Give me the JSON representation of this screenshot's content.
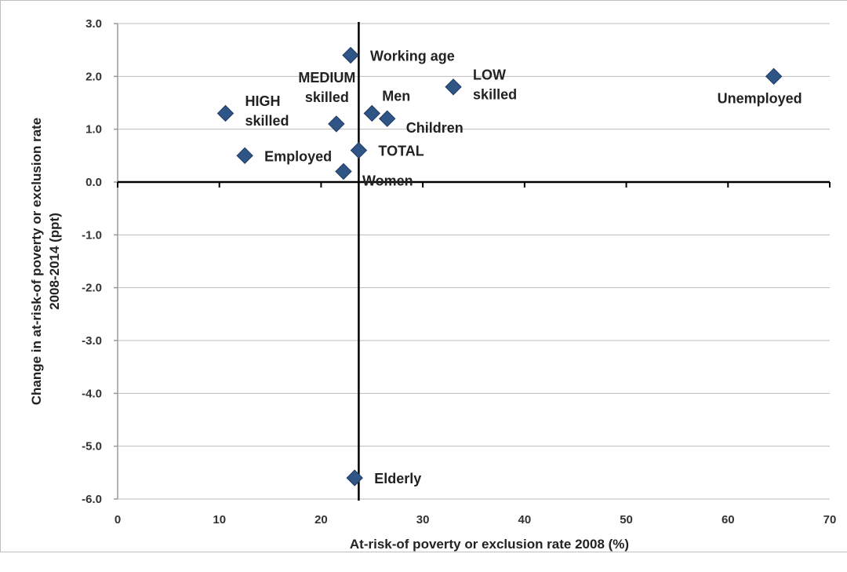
{
  "chart_data": {
    "type": "scatter",
    "xlabel": "At-risk-of poverty or exclusion rate 2008 (%)",
    "ylabel_lines": [
      "Change in at-risk-of poverty or exclusion rate",
      "2008-2014 (ppt)"
    ],
    "xlim": [
      0,
      70
    ],
    "ylim": [
      -6,
      3
    ],
    "x_ticks": [
      0,
      10,
      20,
      30,
      40,
      50,
      60,
      70
    ],
    "y_ticks": [
      3,
      2,
      1,
      0,
      -1,
      -2,
      -3,
      -4,
      -5,
      -6
    ],
    "y_tick_labels": [
      "3.0",
      "2.0",
      "1.0",
      "0.0",
      "-1.0",
      "-2.0",
      "-3.0",
      "-4.0",
      "-5.0",
      "-6.0"
    ],
    "grid": "horizontal",
    "vertical_reference_x": 23.7,
    "marker_color": "#2F5486",
    "marker_edge_color": "#1F3A60",
    "points": [
      {
        "label_lines": [
          "Working age"
        ],
        "x": 22.9,
        "y": 2.4,
        "label_pos": "right"
      },
      {
        "label_lines": [
          "MEDIUM",
          "skilled"
        ],
        "x": 21.5,
        "y": 1.1,
        "label_pos": "above"
      },
      {
        "label_lines": [
          "Men"
        ],
        "x": 25.0,
        "y": 1.3,
        "label_pos": "upper-right"
      },
      {
        "label_lines": [
          "Children"
        ],
        "x": 26.5,
        "y": 1.2,
        "label_pos": "lower-right"
      },
      {
        "label_lines": [
          "LOW",
          "skilled"
        ],
        "x": 33.0,
        "y": 1.8,
        "label_pos": "right"
      },
      {
        "label_lines": [
          "Unemployed"
        ],
        "x": 64.5,
        "y": 2.0,
        "label_pos": "below"
      },
      {
        "label_lines": [
          "HIGH",
          "skilled"
        ],
        "x": 10.6,
        "y": 1.3,
        "label_pos": "right"
      },
      {
        "label_lines": [
          "Employed"
        ],
        "x": 12.5,
        "y": 0.5,
        "label_pos": "right"
      },
      {
        "label_lines": [
          "TOTAL"
        ],
        "x": 23.7,
        "y": 0.6,
        "label_pos": "right"
      },
      {
        "label_lines": [
          "Women"
        ],
        "x": 22.2,
        "y": 0.2,
        "label_pos": "lower-right"
      },
      {
        "label_lines": [
          "Elderly"
        ],
        "x": 23.3,
        "y": -5.6,
        "label_pos": "right"
      }
    ]
  }
}
